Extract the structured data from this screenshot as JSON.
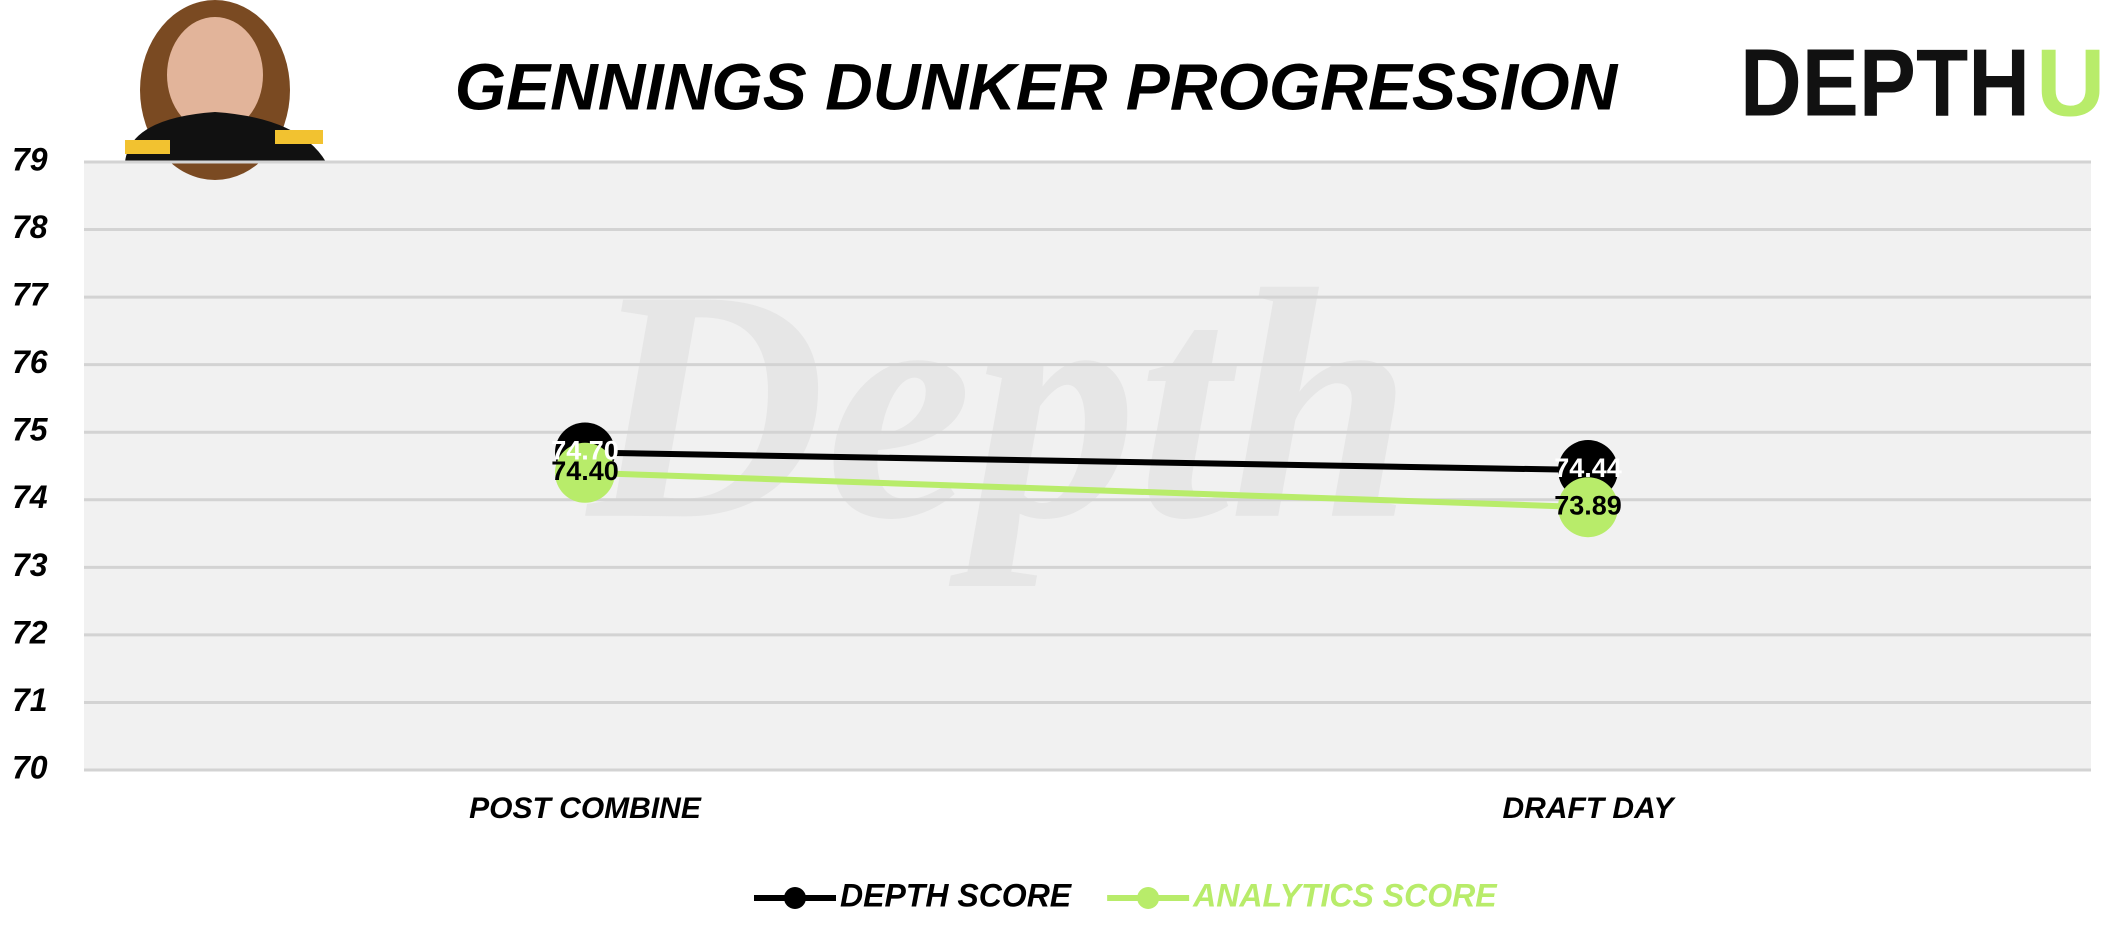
{
  "chart_data": {
    "type": "line",
    "title": "GENNINGS DUNKER PROGRESSION",
    "logo": {
      "text": "DEPTH",
      "accent": "U"
    },
    "watermark": "Depth",
    "categories": [
      "POST COMBINE",
      "DRAFT DAY"
    ],
    "series": [
      {
        "name": "DEPTH SCORE",
        "color": "#000000",
        "values": [
          74.7,
          74.44
        ],
        "value_labels": [
          "74.70",
          "74.44"
        ],
        "label_color": "#ffffff"
      },
      {
        "name": "ANALYTICS SCORE",
        "color": "#b8ec6a",
        "values": [
          74.4,
          73.89
        ],
        "value_labels": [
          "74.40",
          "73.89"
        ],
        "label_color": "#000000"
      }
    ],
    "ylim": [
      70,
      79
    ],
    "yticks": [
      70,
      71,
      72,
      73,
      74,
      75,
      76,
      77,
      78,
      79
    ],
    "grid": true,
    "legend": "bottom"
  }
}
